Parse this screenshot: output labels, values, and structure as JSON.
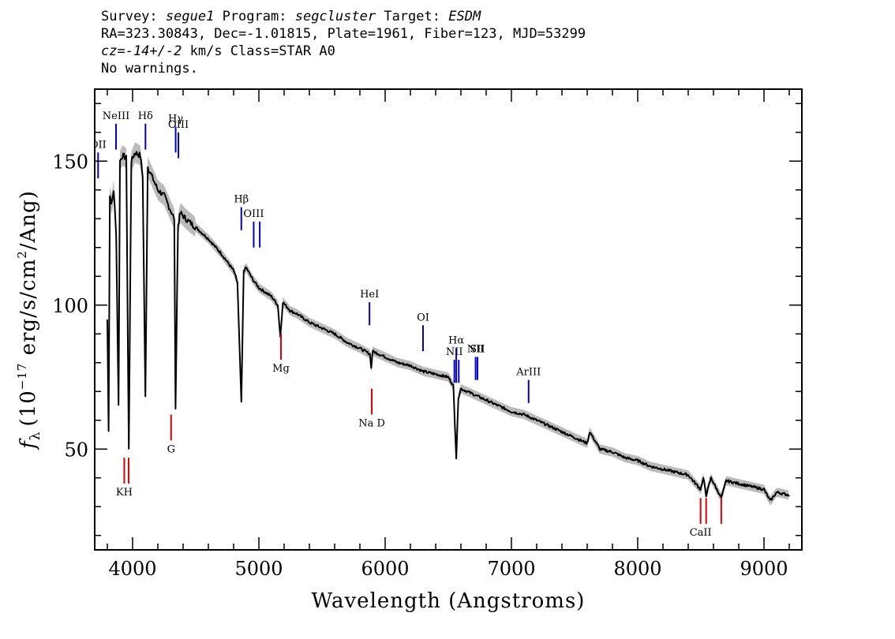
{
  "header": {
    "survey_label": "Survey:",
    "survey": "segue1",
    "program_label": "Program:",
    "program": "segcluster",
    "target_label": "Target:",
    "target": "ESDM",
    "line2": "RA=323.30843, Dec=-1.01815, Plate=1961, Fiber=123, MJD=53299",
    "cz_label": "cz=",
    "cz_value": "-14+/-2",
    "cz_rest": " km/s Class=STAR A0",
    "warnings": "No warnings."
  },
  "chart_data": {
    "type": "line",
    "xlabel": "Wavelength (Angstroms)",
    "ylabel": "f_λ (10^-17 erg/s/cm^2/Ang)",
    "ylabel_parts": {
      "f": "f",
      "sub": "λ",
      "a": "(10",
      "exp1": "−17",
      "b": " erg/s/cm",
      "exp2": "2",
      "c": "/Ang)"
    },
    "xlim": [
      3700,
      9300
    ],
    "ylim": [
      15,
      175
    ],
    "x_ticks": [
      4000,
      5000,
      6000,
      7000,
      8000,
      9000
    ],
    "x_tick_labels": [
      "4000",
      "5000",
      "6000",
      "7000",
      "8000",
      "9000"
    ],
    "y_ticks": [
      50,
      100,
      150
    ],
    "y_tick_labels": [
      "50",
      "100",
      "150"
    ],
    "colors": {
      "flux": "#000000",
      "error": "#bbbbbb",
      "emission": "#0000cc",
      "absorption": "#dd0000"
    },
    "series": [
      {
        "x": [
          3800,
          3810,
          3820,
          3835,
          3850,
          3870,
          3889,
          3900,
          3920,
          3950,
          3970,
          3990,
          4020,
          4060,
          4080,
          4101,
          4120,
          4150,
          4200,
          4250,
          4300,
          4330,
          4340,
          4360,
          4380,
          4420,
          4500,
          4600,
          4700,
          4800,
          4830,
          4861,
          4880,
          4900,
          4950,
          5000,
          5100,
          5150,
          5170,
          5190,
          5250,
          5300,
          5400,
          5500,
          5600,
          5700,
          5800,
          5880,
          5890,
          5900,
          6000,
          6100,
          6200,
          6300,
          6400,
          6500,
          6540,
          6563,
          6580,
          6600,
          6650,
          6700,
          6800,
          6900,
          7000,
          7100,
          7200,
          7300,
          7400,
          7500,
          7600,
          7620,
          7700,
          7800,
          7900,
          8000,
          8100,
          8200,
          8300,
          8400,
          8498,
          8520,
          8542,
          8580,
          8662,
          8700,
          8800,
          8900,
          9000,
          9050,
          9100,
          9200
        ],
        "y": [
          95,
          57,
          138,
          135,
          140,
          125,
          65,
          150,
          152,
          151,
          50,
          150,
          153,
          152,
          145,
          68,
          148,
          145,
          140,
          138,
          133,
          130,
          65,
          128,
          132,
          130,
          127,
          123,
          118,
          112,
          108,
          66,
          112,
          113,
          109,
          106,
          103,
          100,
          89,
          101,
          98,
          97,
          94,
          92,
          90,
          87,
          85,
          83,
          78,
          84,
          82,
          80,
          79,
          77,
          76,
          75,
          72,
          47,
          68,
          71,
          70,
          69,
          67,
          65,
          63,
          62,
          60,
          58,
          56,
          54,
          52,
          56,
          50,
          49,
          47,
          46,
          44,
          43,
          42,
          41,
          36,
          40,
          34,
          40,
          33,
          39,
          38,
          37,
          36,
          32,
          35,
          34
        ]
      }
    ],
    "emission_lines": [
      {
        "label": "OII",
        "x": 3727,
        "y": [
          144,
          153
        ]
      },
      {
        "label": "NeIII",
        "x": 3869,
        "y": 163
      },
      {
        "label": "Hδ",
        "x": 4102,
        "y": 163
      },
      {
        "label": "Hγ",
        "x": 4341,
        "y": 162
      },
      {
        "label": "OIII",
        "x": 4363,
        "y": [
          151,
          160
        ]
      },
      {
        "label": "Hβ",
        "x": 4861,
        "y": [
          126,
          134
        ]
      },
      {
        "label": "OIII",
        "x": 4959,
        "y": [
          120,
          129
        ]
      },
      {
        "label": "",
        "x": 5007,
        "y": [
          120,
          129
        ]
      },
      {
        "label": "HeI",
        "x": 5876,
        "y": [
          93,
          101
        ]
      },
      {
        "label": "OI",
        "x": 6300,
        "y": [
          84,
          93
        ]
      },
      {
        "label": "NII",
        "x": 6548,
        "y": [
          73,
          81
        ]
      },
      {
        "label": "Hα",
        "x": 6563,
        "y": [
          73,
          85
        ]
      },
      {
        "label": "",
        "x": 6583,
        "y": [
          73,
          81
        ]
      },
      {
        "label": "NII",
        "x": 6716,
        "y": [
          74,
          82
        ]
      },
      {
        "label": "SII",
        "x": 6731,
        "y": [
          74,
          82
        ]
      },
      {
        "label": "ArIII",
        "x": 7136,
        "y": [
          66,
          74
        ]
      }
    ],
    "absorption_lines": [
      {
        "label": "KH",
        "x": 3934,
        "y": [
          38,
          47
        ]
      },
      {
        "label": "",
        "x": 3969,
        "y": [
          38,
          47
        ]
      },
      {
        "label": "G",
        "x": 4305,
        "y": [
          53,
          62
        ]
      },
      {
        "label": "Mg",
        "x": 5175,
        "y": [
          81,
          90
        ]
      },
      {
        "label": "Na D",
        "x": 5894,
        "y": [
          62,
          71
        ]
      },
      {
        "label": "CaII",
        "x": 8498,
        "y": [
          24,
          33
        ]
      },
      {
        "label": "",
        "x": 8542,
        "y": [
          24,
          33
        ]
      },
      {
        "label": "",
        "x": 8662,
        "y": [
          24,
          33
        ]
      }
    ]
  }
}
